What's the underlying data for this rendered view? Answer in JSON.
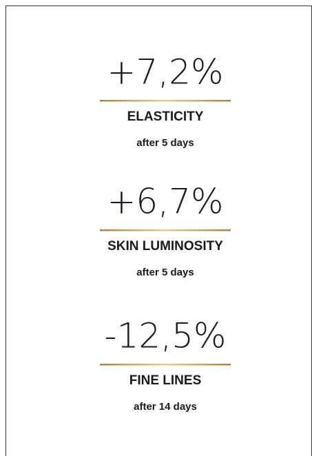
{
  "stats": [
    {
      "value": "+7,2%",
      "label": "ELASTICITY",
      "period": "after 5 days"
    },
    {
      "value": "+6,7%",
      "label": "SKIN LUMINOSITY",
      "period": "after 5 days"
    },
    {
      "value": "-12,5%",
      "label": "FINE LINES",
      "period": "after 14 days"
    }
  ]
}
